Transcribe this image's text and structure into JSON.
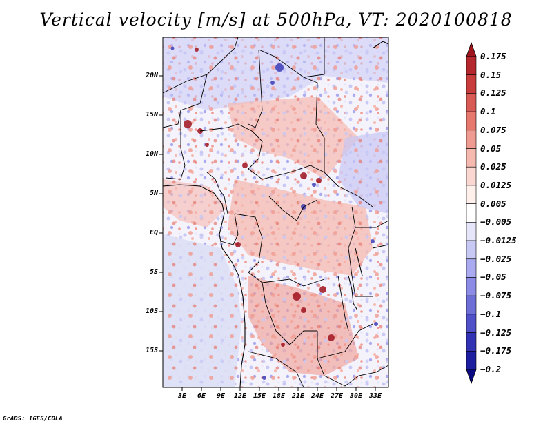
{
  "title": "Vertical velocity [m/s] at 500hPa, VT: 2020100818",
  "credit": "GrADS: IGES/COLA",
  "map": {
    "lat_labels": [
      "20N",
      "15N",
      "10N",
      "5N",
      "EQ",
      "5S",
      "10S",
      "15S"
    ],
    "lon_labels": [
      "3E",
      "6E",
      "9E",
      "12E",
      "15E",
      "18E",
      "21E",
      "24E",
      "27E",
      "30E",
      "33E"
    ]
  },
  "colorbar": {
    "labels": [
      "0.175",
      "0.15",
      "0.125",
      "0.1",
      "0.075",
      "0.05",
      "0.025",
      "0.0125",
      "0.005",
      "−0.005",
      "−0.0125",
      "−0.025",
      "−0.05",
      "−0.075",
      "−0.1",
      "−0.125",
      "−0.175",
      "−0.2"
    ],
    "colors": [
      "#a0141e",
      "#b4282d",
      "#c83c3c",
      "#d75a55",
      "#e6786e",
      "#f09b91",
      "#f5b9b0",
      "#fad7d0",
      "#fff0ec",
      "#ffffff",
      "#e6e6fa",
      "#c8c8f5",
      "#aaaaf0",
      "#8c8ce6",
      "#6e6ed7",
      "#5050c8",
      "#3232b4",
      "#1e1ea0",
      "#0a0a82"
    ]
  },
  "legend_palette": {
    "land_pos": "#f3b0a8",
    "ocean": "#dde0f6",
    "up_strong": "#b4282d",
    "down_strong": "#5050c8"
  }
}
